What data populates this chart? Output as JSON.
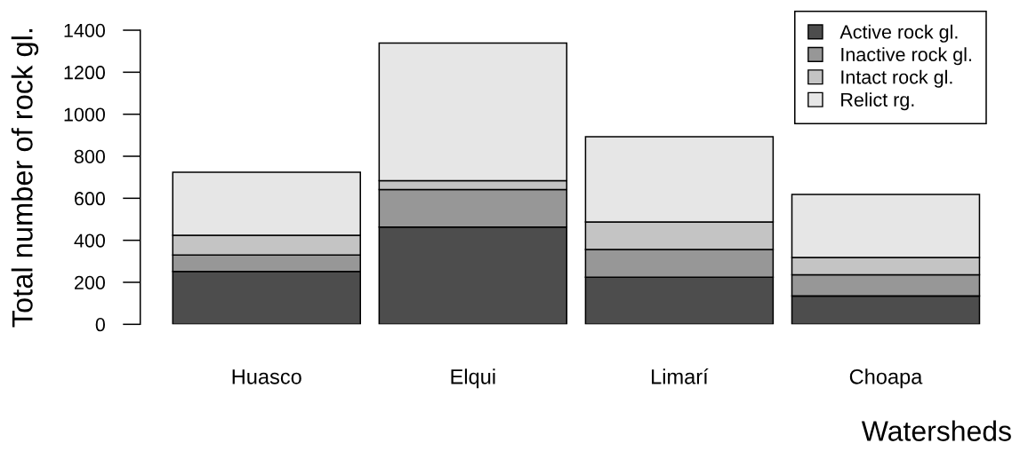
{
  "chart_data": {
    "type": "bar",
    "stacked": true,
    "categories": [
      "Huasco",
      "Elqui",
      "Limarí",
      "Choapa"
    ],
    "series": [
      {
        "name": "Active rock gl.",
        "color": "#4d4d4d",
        "values": [
          252,
          463,
          224,
          135
        ]
      },
      {
        "name": "Inactive rock gl.",
        "color": "#979797",
        "values": [
          78,
          179,
          132,
          101
        ]
      },
      {
        "name": "Intact rock gl.",
        "color": "#c4c4c4",
        "values": [
          94,
          42,
          131,
          82
        ]
      },
      {
        "name": "Relict rg.",
        "color": "#e6e6e6",
        "values": [
          300,
          655,
          406,
          300
        ]
      }
    ],
    "xlabel": "Watersheds",
    "ylabel": "Total number of rock gl.",
    "ylim": [
      0,
      1400
    ],
    "yticks": [
      0,
      200,
      400,
      600,
      800,
      1000,
      1200,
      1400
    ],
    "legend": "top right"
  }
}
